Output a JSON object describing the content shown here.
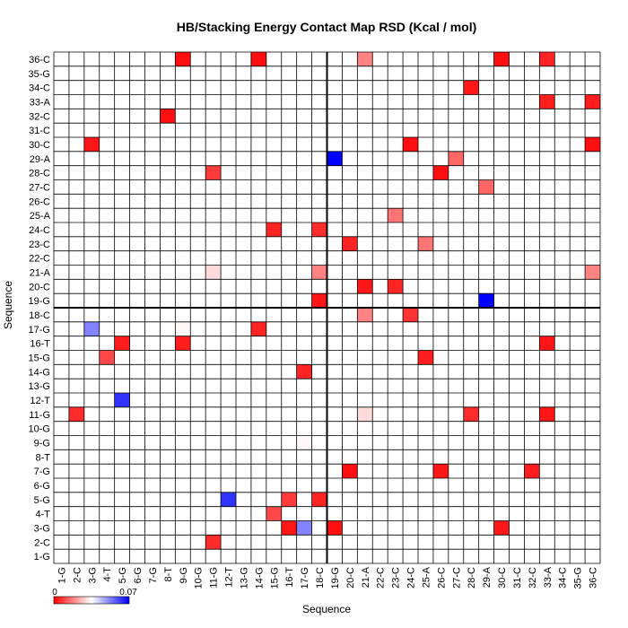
{
  "chart_data": {
    "type": "heatmap",
    "title": "HB/Stacking Energy Contact Map RSD (Kcal / mol)",
    "xlabel": "Sequence",
    "ylabel": "Sequence",
    "labels": [
      "1-G",
      "2-C",
      "3-G",
      "4-T",
      "5-G",
      "6-G",
      "7-G",
      "8-T",
      "9-G",
      "10-G",
      "11-G",
      "12-T",
      "13-G",
      "14-G",
      "15-G",
      "16-T",
      "17-G",
      "18-C",
      "19-G",
      "20-C",
      "21-A",
      "22-C",
      "23-C",
      "24-C",
      "25-A",
      "26-C",
      "27-C",
      "28-C",
      "29-A",
      "30-C",
      "31-C",
      "32-C",
      "33-A",
      "34-C",
      "35-G",
      "36-C"
    ],
    "divider_after_index": 18,
    "colorbar": {
      "min": 0,
      "max": 0.07,
      "min_label": "0",
      "max_label": "0.07",
      "low_color": "#ff0000",
      "mid_color": "#ffffff",
      "high_color": "#0000ff"
    },
    "cells": [
      {
        "x": "3-G",
        "y": "17-G",
        "value": 0.052
      },
      {
        "x": "9-G",
        "y": "17-G",
        "value": 0.034
      },
      {
        "x": "5-G",
        "y": "12-T",
        "value": 0.063
      },
      {
        "x": "12-T",
        "y": "5-G",
        "value": 0.063
      },
      {
        "x": "17-G",
        "y": "3-G",
        "value": 0.052
      },
      {
        "x": "17-G",
        "y": "9-G",
        "value": 0.034
      },
      {
        "x": "19-G",
        "y": "29-A",
        "value": 0.07
      },
      {
        "x": "29-A",
        "y": "19-G",
        "value": 0.07
      },
      {
        "x": "11-G",
        "y": "21-A",
        "value": 0.03
      },
      {
        "x": "21-A",
        "y": "11-G",
        "value": 0.03
      },
      {
        "x": "21-A",
        "y": "36-C",
        "value": 0.018
      },
      {
        "x": "21-A",
        "y": "18-C",
        "value": 0.018
      },
      {
        "x": "18-C",
        "y": "21-A",
        "value": 0.018
      },
      {
        "x": "36-C",
        "y": "21-A",
        "value": 0.018
      },
      {
        "x": "23-C",
        "y": "25-A",
        "value": 0.016
      },
      {
        "x": "25-A",
        "y": "23-C",
        "value": 0.016
      },
      {
        "x": "27-C",
        "y": "29-A",
        "value": 0.014
      },
      {
        "x": "29-A",
        "y": "27-C",
        "value": 0.014
      },
      {
        "x": "15-G",
        "y": "4-T",
        "value": 0.01
      },
      {
        "x": "4-T",
        "y": "15-G",
        "value": 0.01
      },
      {
        "x": "16-T",
        "y": "5-G",
        "value": 0.008
      },
      {
        "x": "11-G",
        "y": "28-C",
        "value": 0.008
      },
      {
        "x": "28-C",
        "y": "11-G",
        "value": 0.006
      },
      {
        "x": "2-C",
        "y": "11-G",
        "value": 0.006
      },
      {
        "x": "11-G",
        "y": "2-C",
        "value": 0.006
      },
      {
        "x": "24-C",
        "y": "18-C",
        "value": 0.007
      },
      {
        "x": "18-C",
        "y": "24-C",
        "value": 0.006
      },
      {
        "x": "20-C",
        "y": "23-C",
        "value": 0.005
      },
      {
        "x": "23-C",
        "y": "20-C",
        "value": 0.005
      },
      {
        "x": "33-A",
        "y": "33-A",
        "value": 0.004
      },
      {
        "x": "36-C",
        "y": "33-A",
        "value": 0.004
      },
      {
        "x": "33-A",
        "y": "36-C",
        "value": 0.005
      },
      {
        "x": "14-G",
        "y": "17-G",
        "value": 0.005
      },
      {
        "x": "17-G",
        "y": "14-G",
        "value": 0.005
      },
      {
        "x": "15-G",
        "y": "24-C",
        "value": 0.005
      },
      {
        "x": "18-C",
        "y": "5-G",
        "value": 0.005
      },
      {
        "x": "9-G",
        "y": "16-T",
        "value": 0.004
      },
      {
        "x": "5-G",
        "y": "16-T",
        "value": 0.004
      },
      {
        "x": "25-A",
        "y": "15-G",
        "value": 0.004
      },
      {
        "x": "32-C",
        "y": "7-G",
        "value": 0.004
      },
      {
        "x": "30-C",
        "y": "3-G",
        "value": 0.003
      },
      {
        "x": "3-G",
        "y": "30-C",
        "value": 0.003
      },
      {
        "x": "18-C",
        "y": "19-G",
        "value": 0.003
      },
      {
        "x": "28-C",
        "y": "34-C",
        "value": 0.003
      },
      {
        "x": "33-A",
        "y": "16-T",
        "value": 0.003
      },
      {
        "x": "33-A",
        "y": "11-G",
        "value": 0.003
      },
      {
        "x": "21-A",
        "y": "20-C",
        "value": 0.003
      },
      {
        "x": "26-C",
        "y": "7-G",
        "value": 0.003
      },
      {
        "x": "16-T",
        "y": "3-G",
        "value": 0.003
      },
      {
        "x": "36-C",
        "y": "30-C",
        "value": 0.002
      },
      {
        "x": "26-C",
        "y": "28-C",
        "value": 0.002
      },
      {
        "x": "20-C",
        "y": "7-G",
        "value": 0.002
      },
      {
        "x": "19-G",
        "y": "3-G",
        "value": 0.002
      },
      {
        "x": "8-T",
        "y": "32-C",
        "value": 0.002
      },
      {
        "x": "14-G",
        "y": "36-C",
        "value": 0.002
      },
      {
        "x": "9-G",
        "y": "36-C",
        "value": 0.002
      },
      {
        "x": "24-C",
        "y": "30-C",
        "value": 0.002
      },
      {
        "x": "30-C",
        "y": "36-C",
        "value": 0.002
      }
    ]
  }
}
